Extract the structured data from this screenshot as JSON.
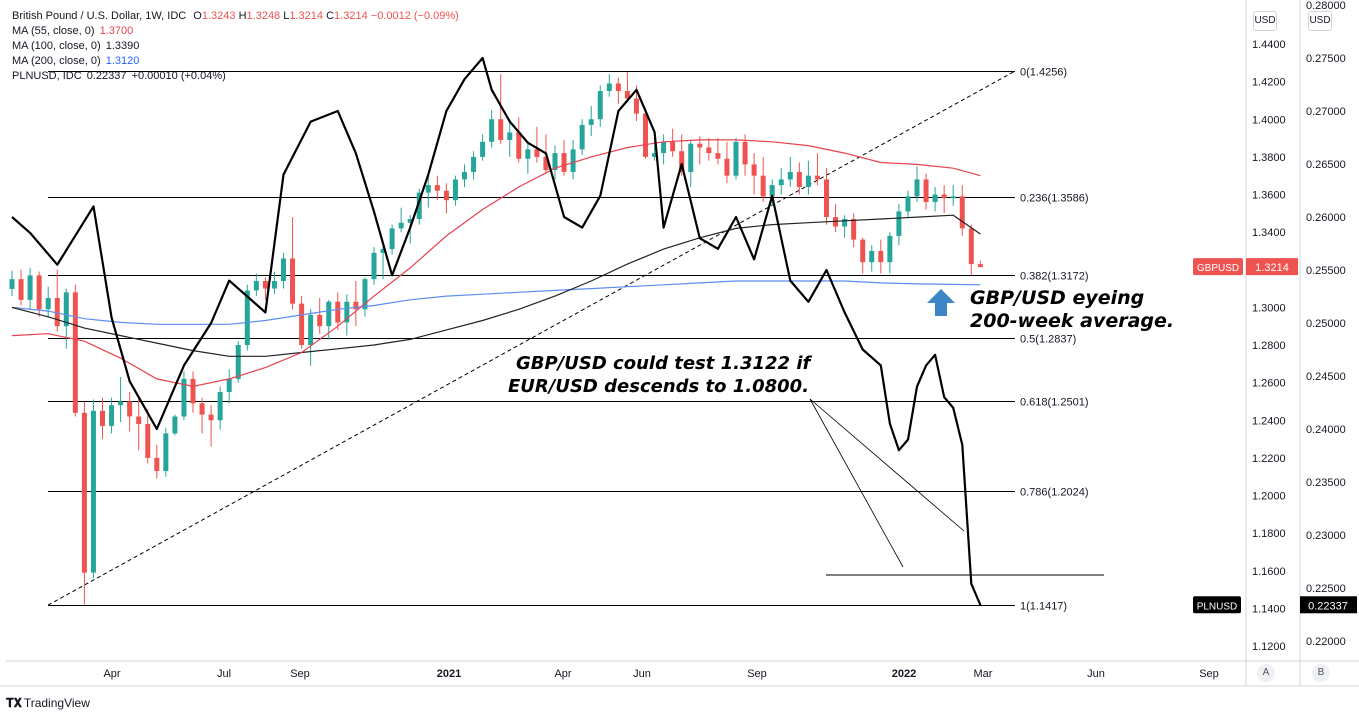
{
  "legend": {
    "symbol": "British Pound / U.S. Dollar, 1W, IDC",
    "ohlc": {
      "o_label": "O",
      "o": "1.3243",
      "h_label": "H",
      "h": "1.3248",
      "l_label": "L",
      "l": "1.3214",
      "c_label": "C",
      "c": "1.3214",
      "chg": "−0.0012 (−0.09%)"
    },
    "ma55": {
      "label": "MA (55, close, 0)",
      "value": "1.3700",
      "color": "#e8404f"
    },
    "ma100": {
      "label": "MA (100, close, 0)",
      "value": "1.3390",
      "color": "#131722"
    },
    "ma200": {
      "label": "MA (200, close, 0)",
      "value": "1.3120",
      "color": "#2962ff"
    },
    "pln": {
      "label": "PLNUSD, IDC",
      "value": "0.22337",
      "chg": "+0.00010 (+0.04%)"
    }
  },
  "axis_buttons": {
    "left_currency": "USD",
    "right_currency": "USD"
  },
  "badges": {
    "gbpusd_tag": "GBPUSD",
    "gbpusd_value": "1.3214",
    "plnusd_tag": "PLNUSD",
    "plnusd_value": "0.22337"
  },
  "annotations": {
    "eyeing_line1": "GBP/USD eyeing",
    "eyeing_line2": "200-week average.",
    "test_line1": "GBP/USD could test 1.3122 if",
    "test_line2": "EUR/USD descends to 1.0800."
  },
  "corner_buttons": {
    "a": "A",
    "b": "B"
  },
  "watermark": "TradingView",
  "colors": {
    "up": "#26a69a",
    "down": "#ef5350",
    "ma55": "#e8404f",
    "ma100": "#222222",
    "ma200": "#5b8def",
    "pln": "#000000",
    "arrow": "#3d85c6"
  },
  "chart_data": {
    "type": "line",
    "title": "British Pound / U.S. Dollar, 1W, IDC",
    "xlabel": "",
    "ylabel": "",
    "x_ticks": [
      "Apr",
      "Jul",
      "Sep",
      "2021",
      "Apr",
      "Jun",
      "Sep",
      "2022",
      "Mar",
      "Jun",
      "Sep"
    ],
    "x_ticks_bold": [
      "2021",
      "2022"
    ],
    "y_left_ticks": [
      "1.4400",
      "1.4200",
      "1.4000",
      "1.3800",
      "1.3600",
      "1.3400",
      "1.3200",
      "1.3000",
      "1.2800",
      "1.2600",
      "1.2400",
      "1.2200",
      "1.2000",
      "1.1800",
      "1.1600",
      "1.1400",
      "1.1200"
    ],
    "y_right_ticks": [
      "0.28000",
      "0.27500",
      "0.27000",
      "0.26500",
      "0.26000",
      "0.25500",
      "0.25000",
      "0.24500",
      "0.24000",
      "0.23500",
      "0.23000",
      "0.22500",
      "0.22000"
    ],
    "ylim_left": [
      1.11,
      1.455
    ],
    "ylim_right": [
      0.2185,
      0.2805
    ],
    "fib_levels": [
      {
        "label": "0(1.4256)",
        "value": 1.4256
      },
      {
        "label": "0.236(1.3586)",
        "value": 1.3586
      },
      {
        "label": "0.382(1.3172)",
        "value": 1.3172
      },
      {
        "label": "0.5(1.2837)",
        "value": 1.2837
      },
      {
        "label": "0.618(1.2501)",
        "value": 1.2501
      },
      {
        "label": "0.786(1.2024)",
        "value": 1.2024
      },
      {
        "label": "1(1.1417)",
        "value": 1.1417
      }
    ],
    "candles_ohlc": [
      [
        1.3098,
        1.3195,
        1.306,
        1.315
      ],
      [
        1.315,
        1.32,
        1.301,
        1.304
      ],
      [
        1.304,
        1.321,
        1.299,
        1.317
      ],
      [
        1.317,
        1.319,
        1.295,
        1.299
      ],
      [
        1.299,
        1.311,
        1.295,
        1.305
      ],
      [
        1.305,
        1.32,
        1.287,
        1.29
      ],
      [
        1.29,
        1.31,
        1.278,
        1.308
      ],
      [
        1.308,
        1.312,
        1.242,
        1.244
      ],
      [
        1.244,
        1.25,
        1.142,
        1.159
      ],
      [
        1.159,
        1.251,
        1.156,
        1.245
      ],
      [
        1.245,
        1.252,
        1.23,
        1.237
      ],
      [
        1.237,
        1.252,
        1.233,
        1.248
      ],
      [
        1.248,
        1.263,
        1.239,
        1.25
      ],
      [
        1.25,
        1.255,
        1.234,
        1.242
      ],
      [
        1.242,
        1.253,
        1.224,
        1.238
      ],
      [
        1.238,
        1.246,
        1.217,
        1.22
      ],
      [
        1.22,
        1.227,
        1.209,
        1.213
      ],
      [
        1.213,
        1.236,
        1.21,
        1.233
      ],
      [
        1.233,
        1.243,
        1.232,
        1.242
      ],
      [
        1.242,
        1.266,
        1.24,
        1.262
      ],
      [
        1.262,
        1.266,
        1.244,
        1.249
      ],
      [
        1.249,
        1.252,
        1.233,
        1.243
      ],
      [
        1.243,
        1.248,
        1.226,
        1.24
      ],
      [
        1.24,
        1.258,
        1.235,
        1.255
      ],
      [
        1.255,
        1.267,
        1.249,
        1.262
      ],
      [
        1.262,
        1.282,
        1.26,
        1.28
      ],
      [
        1.28,
        1.312,
        1.277,
        1.309
      ],
      [
        1.309,
        1.318,
        1.306,
        1.314
      ],
      [
        1.314,
        1.316,
        1.304,
        1.31
      ],
      [
        1.31,
        1.319,
        1.307,
        1.314
      ],
      [
        1.314,
        1.329,
        1.31,
        1.326
      ],
      [
        1.326,
        1.348,
        1.299,
        1.302
      ],
      [
        1.302,
        1.306,
        1.278,
        1.28
      ],
      [
        1.28,
        1.299,
        1.269,
        1.296
      ],
      [
        1.296,
        1.305,
        1.286,
        1.29
      ],
      [
        1.29,
        1.304,
        1.283,
        1.303
      ],
      [
        1.303,
        1.308,
        1.288,
        1.292
      ],
      [
        1.292,
        1.307,
        1.285,
        1.303
      ],
      [
        1.303,
        1.314,
        1.29,
        1.299
      ],
      [
        1.299,
        1.316,
        1.295,
        1.315
      ],
      [
        1.315,
        1.332,
        1.312,
        1.329
      ],
      [
        1.329,
        1.333,
        1.315,
        1.331
      ],
      [
        1.331,
        1.344,
        1.328,
        1.342
      ],
      [
        1.342,
        1.353,
        1.34,
        1.345
      ],
      [
        1.345,
        1.349,
        1.334,
        1.347
      ],
      [
        1.347,
        1.363,
        1.344,
        1.361
      ],
      [
        1.361,
        1.37,
        1.353,
        1.365
      ],
      [
        1.365,
        1.37,
        1.357,
        1.362
      ],
      [
        1.362,
        1.366,
        1.35,
        1.357
      ],
      [
        1.357,
        1.37,
        1.354,
        1.368
      ],
      [
        1.368,
        1.376,
        1.364,
        1.372
      ],
      [
        1.372,
        1.383,
        1.368,
        1.38
      ],
      [
        1.38,
        1.392,
        1.378,
        1.388
      ],
      [
        1.388,
        1.405,
        1.385,
        1.4
      ],
      [
        1.4,
        1.424,
        1.387,
        1.389
      ],
      [
        1.389,
        1.399,
        1.38,
        1.393
      ],
      [
        1.393,
        1.401,
        1.377,
        1.379
      ],
      [
        1.379,
        1.387,
        1.371,
        1.384
      ],
      [
        1.384,
        1.396,
        1.377,
        1.38
      ],
      [
        1.38,
        1.392,
        1.371,
        1.373
      ],
      [
        1.373,
        1.386,
        1.368,
        1.382
      ],
      [
        1.382,
        1.389,
        1.37,
        1.372
      ],
      [
        1.372,
        1.389,
        1.368,
        1.384
      ],
      [
        1.384,
        1.4,
        1.381,
        1.397
      ],
      [
        1.397,
        1.407,
        1.391,
        1.4
      ],
      [
        1.4,
        1.418,
        1.396,
        1.415
      ],
      [
        1.415,
        1.424,
        1.412,
        1.419
      ],
      [
        1.419,
        1.422,
        1.408,
        1.415
      ],
      [
        1.415,
        1.425,
        1.409,
        1.411
      ],
      [
        1.411,
        1.418,
        1.399,
        1.403
      ],
      [
        1.403,
        1.406,
        1.379,
        1.38
      ],
      [
        1.38,
        1.393,
        1.378,
        1.382
      ],
      [
        1.382,
        1.392,
        1.376,
        1.388
      ],
      [
        1.388,
        1.395,
        1.38,
        1.383
      ],
      [
        1.383,
        1.392,
        1.37,
        1.372
      ],
      [
        1.372,
        1.389,
        1.364,
        1.387
      ],
      [
        1.387,
        1.391,
        1.376,
        1.385
      ],
      [
        1.385,
        1.39,
        1.378,
        1.382
      ],
      [
        1.382,
        1.39,
        1.376,
        1.379
      ],
      [
        1.379,
        1.388,
        1.366,
        1.37
      ],
      [
        1.37,
        1.39,
        1.368,
        1.388
      ],
      [
        1.388,
        1.392,
        1.37,
        1.376
      ],
      [
        1.376,
        1.382,
        1.36,
        1.37
      ],
      [
        1.37,
        1.38,
        1.356,
        1.359
      ],
      [
        1.359,
        1.368,
        1.354,
        1.365
      ],
      [
        1.365,
        1.374,
        1.36,
        1.368
      ],
      [
        1.368,
        1.38,
        1.364,
        1.372
      ],
      [
        1.372,
        1.377,
        1.36,
        1.364
      ],
      [
        1.364,
        1.378,
        1.36,
        1.37
      ],
      [
        1.37,
        1.382,
        1.365,
        1.368
      ],
      [
        1.368,
        1.374,
        1.344,
        1.348
      ],
      [
        1.348,
        1.355,
        1.34,
        1.343
      ],
      [
        1.343,
        1.349,
        1.337,
        1.347
      ],
      [
        1.347,
        1.35,
        1.332,
        1.336
      ],
      [
        1.336,
        1.337,
        1.318,
        1.324
      ],
      [
        1.324,
        1.333,
        1.319,
        1.33
      ],
      [
        1.33,
        1.336,
        1.318,
        1.324
      ],
      [
        1.324,
        1.34,
        1.318,
        1.338
      ],
      [
        1.338,
        1.355,
        1.333,
        1.351
      ],
      [
        1.351,
        1.362,
        1.348,
        1.359
      ],
      [
        1.359,
        1.375,
        1.356,
        1.368
      ],
      [
        1.368,
        1.371,
        1.352,
        1.356
      ],
      [
        1.356,
        1.364,
        1.351,
        1.36
      ],
      [
        1.36,
        1.365,
        1.35,
        1.358
      ],
      [
        1.358,
        1.365,
        1.354,
        1.359
      ],
      [
        1.359,
        1.365,
        1.338,
        1.342
      ],
      [
        1.342,
        1.344,
        1.317,
        1.323
      ],
      [
        1.323,
        1.3248,
        1.3214,
        1.3214
      ]
    ],
    "series": [
      {
        "name": "MA (55, close, 0)",
        "color": "#e8404f",
        "x": [
          0,
          4,
          8,
          12,
          16,
          20,
          24,
          28,
          32,
          36,
          40,
          44,
          48,
          52,
          56,
          60,
          64,
          68,
          72,
          76,
          80,
          84,
          88,
          92,
          96,
          100,
          104,
          107
        ],
        "y": [
          1.285,
          1.286,
          1.282,
          1.273,
          1.262,
          1.258,
          1.262,
          1.268,
          1.276,
          1.29,
          1.306,
          1.321,
          1.338,
          1.352,
          1.364,
          1.374,
          1.38,
          1.385,
          1.388,
          1.389,
          1.389,
          1.388,
          1.386,
          1.382,
          1.377,
          1.376,
          1.374,
          1.37
        ]
      },
      {
        "name": "MA (100, close, 0)",
        "color": "#222222",
        "x": [
          0,
          4,
          8,
          12,
          16,
          20,
          24,
          28,
          32,
          36,
          40,
          44,
          48,
          52,
          56,
          60,
          64,
          68,
          72,
          76,
          80,
          84,
          88,
          92,
          96,
          100,
          104,
          107
        ],
        "y": [
          1.3,
          1.295,
          1.289,
          1.285,
          1.281,
          1.277,
          1.274,
          1.274,
          1.276,
          1.278,
          1.28,
          1.283,
          1.288,
          1.293,
          1.299,
          1.306,
          1.314,
          1.323,
          1.331,
          1.337,
          1.342,
          1.344,
          1.345,
          1.346,
          1.347,
          1.348,
          1.349,
          1.339
        ]
      },
      {
        "name": "MA (200, close, 0)",
        "color": "#5b8def",
        "x": [
          0,
          4,
          8,
          12,
          16,
          20,
          24,
          28,
          32,
          36,
          40,
          44,
          48,
          52,
          56,
          60,
          64,
          68,
          72,
          76,
          80,
          84,
          88,
          92,
          96,
          100,
          104,
          107
        ],
        "y": [
          1.3,
          1.298,
          1.294,
          1.292,
          1.291,
          1.291,
          1.291,
          1.293,
          1.296,
          1.299,
          1.301,
          1.304,
          1.306,
          1.307,
          1.308,
          1.309,
          1.31,
          1.311,
          1.312,
          1.313,
          1.314,
          1.314,
          1.314,
          1.314,
          1.313,
          1.3125,
          1.3122,
          1.312
        ]
      },
      {
        "name": "PLNUSD, IDC",
        "color": "#000000",
        "axis": "right",
        "x": [
          0,
          2,
          5,
          9,
          11,
          13,
          16,
          19,
          22,
          24,
          28,
          30,
          33,
          36,
          38,
          40,
          42,
          44,
          46,
          48,
          50,
          52,
          53,
          55,
          57,
          59,
          61,
          63,
          65,
          67,
          69,
          71,
          72,
          74,
          76,
          78,
          80,
          82,
          84,
          86,
          88,
          90,
          92,
          94,
          96,
          97,
          98,
          99,
          100,
          101,
          102,
          103,
          104,
          105,
          106,
          107
        ],
        "y": [
          0.26,
          0.2585,
          0.2555,
          0.261,
          0.2505,
          0.2445,
          0.24,
          0.246,
          0.25,
          0.254,
          0.251,
          0.264,
          0.269,
          0.27,
          0.266,
          0.2605,
          0.2545,
          0.259,
          0.264,
          0.27,
          0.273,
          0.275,
          0.272,
          0.269,
          0.267,
          0.266,
          0.26,
          0.259,
          0.262,
          0.27,
          0.272,
          0.268,
          0.259,
          0.265,
          0.258,
          0.257,
          0.26,
          0.256,
          0.262,
          0.254,
          0.252,
          0.255,
          0.251,
          0.2475,
          0.246,
          0.2405,
          0.238,
          0.239,
          0.244,
          0.246,
          0.247,
          0.243,
          0.242,
          0.2385,
          0.2254,
          0.2234
        ]
      }
    ]
  }
}
